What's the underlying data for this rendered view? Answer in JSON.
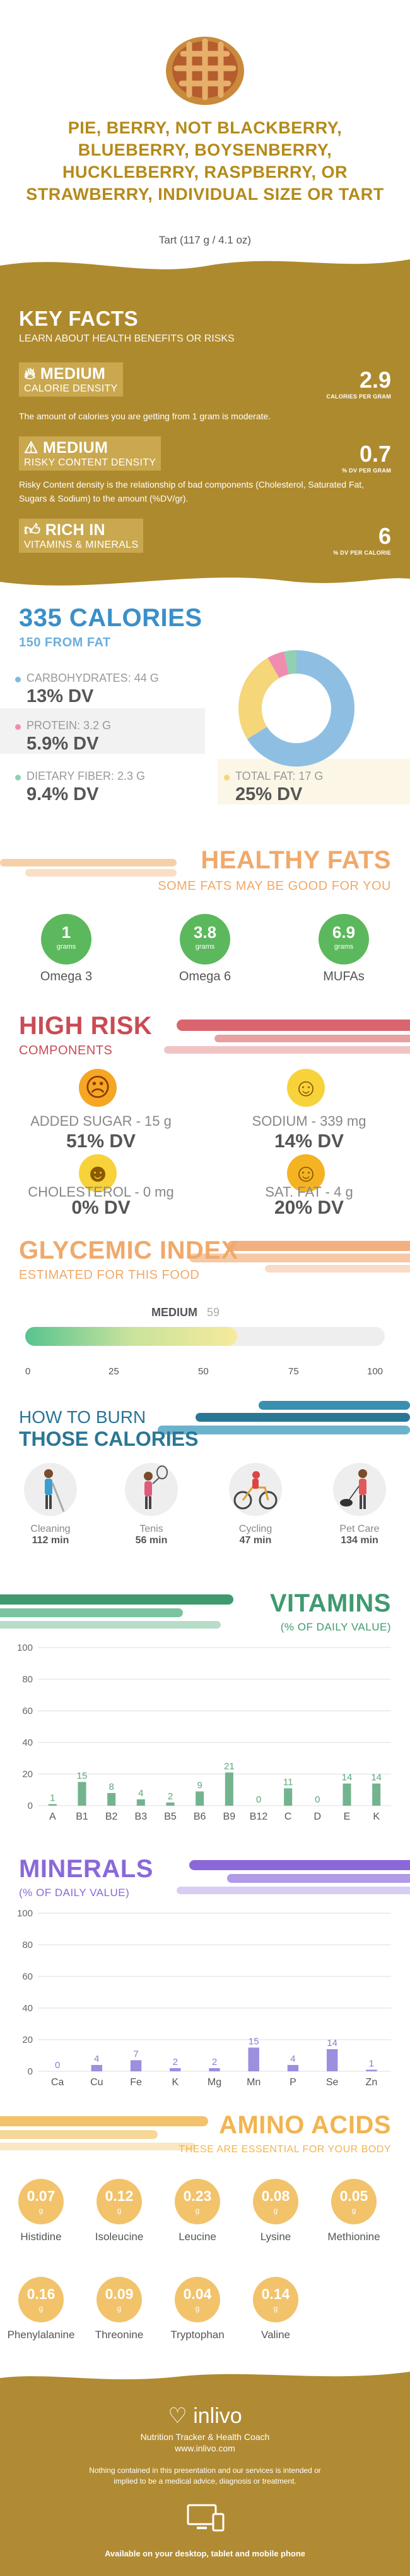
{
  "header": {
    "title": "PIE, BERRY, NOT BLACKBERRY, BLUEBERRY, BOYSENBERRY, HUCKLEBERRY, RASPBERRY, OR STRAWBERRY, INDIVIDUAL SIZE OR TART",
    "subtitle": "Tart (117 g / 4.1 oz)"
  },
  "key_facts": {
    "heading": "KEY FACTS",
    "subheading": "LEARN ABOUT HEALTH BENEFITS OR RISKS",
    "calorie_density": {
      "level": "MEDIUM",
      "label": "CALORIE DENSITY",
      "value": "2.9",
      "unit": "CALORIES PER GRAM",
      "desc": "The amount of calories you are getting from 1 gram is moderate."
    },
    "risk_density": {
      "level": "MEDIUM",
      "label": "RISKY CONTENT DENSITY",
      "value": "0.7",
      "unit": "% DV PER GRAM",
      "desc": "Risky Content density is the relationship of bad components (Cholesterol, Saturated Fat, Sugars & Sodium) to the amount (%DV/gr)."
    },
    "rich": {
      "level": "RICH IN",
      "label": "VITAMINS & MINERALS",
      "value": "6",
      "unit": "% DV PER CALORIE"
    }
  },
  "calories": {
    "heading": "335 CALORIES",
    "sub": "150 FROM FAT",
    "carbs": {
      "label": "CARBOHYDRATES: 44 g",
      "dv": "13% DV",
      "color": "#7fb8e0"
    },
    "protein": {
      "label": "PROTEIN: 3.2 g",
      "dv": "5.9% DV",
      "color": "#f08cb0"
    },
    "fiber": {
      "label": "DIETARY FIBER: 2.3 g",
      "dv": "9.4% DV",
      "color": "#8fd1b0"
    },
    "fat": {
      "label": "TOTAL FAT: 17 g",
      "dv": "25% DV",
      "color": "#f5d77a"
    },
    "donut": [
      {
        "name": "carbs",
        "value": 44,
        "color": "#8ebfe2"
      },
      {
        "name": "fat",
        "value": 17,
        "color": "#f5d77a"
      },
      {
        "name": "protein",
        "value": 3.2,
        "color": "#f08cb0"
      },
      {
        "name": "fiber",
        "value": 2.3,
        "color": "#8fd1b0"
      }
    ]
  },
  "fats": {
    "heading": "HEALTHY FATS",
    "sub": "SOME FATS MAY BE GOOD FOR YOU",
    "items": [
      {
        "value": "1",
        "unit": "grams",
        "label": "Omega 3"
      },
      {
        "value": "3.8",
        "unit": "grams",
        "label": "Omega 6"
      },
      {
        "value": "6.9",
        "unit": "grams",
        "label": "MUFAs"
      }
    ]
  },
  "risk": {
    "heading": "HIGH RISK",
    "sub": "COMPONENTS",
    "items": [
      {
        "label": "ADDED SUGAR - 15 g",
        "dv": "51% DV",
        "face": "☹",
        "color": "#f5a623"
      },
      {
        "label": "SODIUM - 339 mg",
        "dv": "14% DV",
        "face": "☺",
        "color": "#f8d23a"
      },
      {
        "label": "CHOLESTEROL - 0 mg",
        "dv": "0% DV",
        "face": "☻",
        "color": "#f8d23a"
      },
      {
        "label": "SAT. FAT - 4 g",
        "dv": "20% DV",
        "face": "☺",
        "color": "#f5b323"
      }
    ]
  },
  "glycemic": {
    "heading": "GLYCEMIC INDEX",
    "sub": "ESTIMATED FOR THIS FOOD",
    "level": "MEDIUM",
    "value": 59,
    "ticks": [
      "0",
      "25",
      "50",
      "75",
      "100"
    ]
  },
  "burn": {
    "heading1": "HOW TO BURN",
    "heading2": "THOSE CALORIES",
    "items": [
      {
        "name": "Cleaning",
        "min": "112 min"
      },
      {
        "name": "Tenis",
        "min": "56 min"
      },
      {
        "name": "Cycling",
        "min": "47 min"
      },
      {
        "name": "Pet Care",
        "min": "134 min"
      }
    ]
  },
  "vitamins_title": {
    "heading": "VITAMINS",
    "sub": "(% OF DAILY VALUE)"
  },
  "minerals_title": {
    "heading": "MINERALS",
    "sub": "(% OF DAILY VALUE)"
  },
  "chart_data": [
    {
      "type": "bar",
      "categories": [
        "A",
        "B1",
        "B2",
        "B3",
        "B5",
        "B6",
        "B9",
        "B12",
        "C",
        "D",
        "E",
        "K"
      ],
      "values": [
        1,
        15,
        8,
        4,
        2,
        9,
        21,
        0,
        11,
        0,
        14,
        14
      ],
      "ylim": [
        0,
        100
      ],
      "yticks": [
        "0",
        "20",
        "40",
        "60",
        "80",
        "100"
      ],
      "color": "#5aa77a"
    },
    {
      "type": "bar",
      "categories": [
        "Ca",
        "Cu",
        "Fe",
        "K",
        "Mg",
        "Mn",
        "P",
        "Se",
        "Zn"
      ],
      "values": [
        0,
        4,
        7,
        2,
        2,
        15,
        4,
        14,
        1
      ],
      "ylim": [
        0,
        100
      ],
      "yticks": [
        "0",
        "20",
        "40",
        "60",
        "80",
        "100"
      ],
      "color": "#8a7bd8"
    }
  ],
  "amino": {
    "heading": "AMINO ACIDS",
    "sub": "THESE ARE ESSENTIAL FOR YOUR BODY",
    "unit": "g",
    "items": [
      {
        "value": "0.07",
        "label": "Histidine"
      },
      {
        "value": "0.12",
        "label": "Isoleucine"
      },
      {
        "value": "0.23",
        "label": "Leucine"
      },
      {
        "value": "0.08",
        "label": "Lysine"
      },
      {
        "value": "0.05",
        "label": "Methionine"
      },
      {
        "value": "0.16",
        "label": "Phenylalanine"
      },
      {
        "value": "0.09",
        "label": "Threonine"
      },
      {
        "value": "0.04",
        "label": "Tryptophan"
      },
      {
        "value": "0.14",
        "label": "Valine"
      }
    ]
  },
  "footer": {
    "brand": "inlivo",
    "tagline": "Nutrition Tracker & Health Coach",
    "url": "www.inlivo.com",
    "disclaimer": "Nothing contained in this presentation and our services is intended or implied to be a medical advice, diagnosis or treatment.",
    "available": "Available on your desktop, tablet and mobile phone"
  }
}
